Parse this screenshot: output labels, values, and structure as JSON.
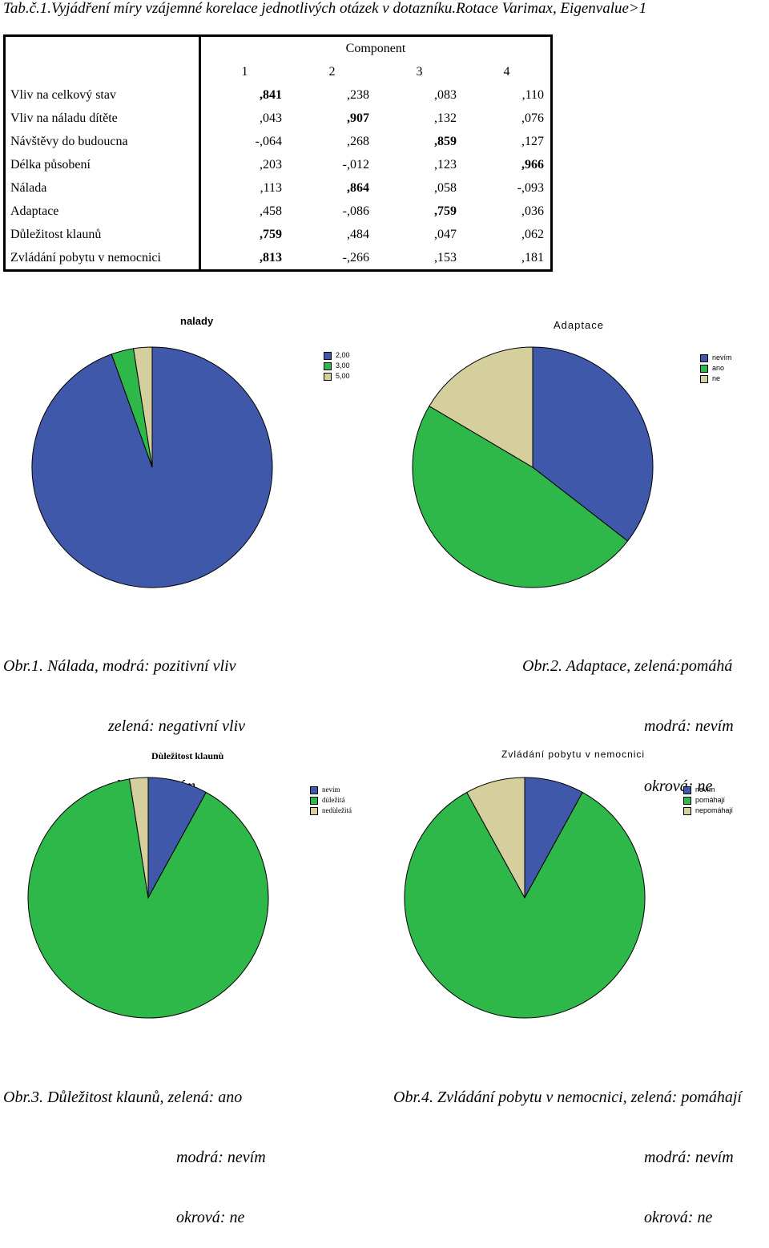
{
  "title": "Tab.č.1.Vyjádření míry vzájemné korelace jednotlivých otázek v dotazníku.Rotace Varimax, Eigenvalue>1",
  "table": {
    "header": "Component",
    "columns": [
      "1",
      "2",
      "3",
      "4"
    ],
    "rows": [
      {
        "label": "Vliv na celkový stav",
        "values": [
          ",841",
          ",238",
          ",083",
          ",110"
        ],
        "bold": [
          0
        ]
      },
      {
        "label": "Vliv na náladu dítěte",
        "values": [
          ",043",
          ",907",
          ",132",
          ",076"
        ],
        "bold": [
          1
        ]
      },
      {
        "label": "Návštěvy do budoucna",
        "values": [
          "-,064",
          ",268",
          ",859",
          ",127"
        ],
        "bold": [
          2
        ]
      },
      {
        "label": "Délka působení",
        "values": [
          ",203",
          "-,012",
          ",123",
          ",966"
        ],
        "bold": [
          3
        ]
      },
      {
        "label": "Nálada",
        "values": [
          ",113",
          ",864",
          ",058",
          "-,093"
        ],
        "bold": [
          1
        ]
      },
      {
        "label": "Adaptace",
        "values": [
          ",458",
          "-,086",
          ",759",
          ",036"
        ],
        "bold": [
          2
        ]
      },
      {
        "label": "Důležitost klaunů",
        "values": [
          ",759",
          ",484",
          ",047",
          ",062"
        ],
        "bold": [
          0
        ]
      },
      {
        "label": "Zvládání pobytu v nemocnici",
        "values": [
          ",813",
          "-,266",
          ",153",
          ",181"
        ],
        "bold": [
          0
        ]
      }
    ]
  },
  "colors": {
    "blue": "#3f58a9",
    "green": "#2fb84a",
    "tan": "#d4cf9c"
  },
  "chart_data": [
    {
      "type": "pie",
      "title": "nalady",
      "legend": [
        "2,00",
        "3,00",
        "5,00"
      ],
      "values": [
        94.5,
        3.0,
        2.5
      ],
      "caption": [
        "Obr.1. Nálada, modrá: pozitivní vliv",
        "zelená: negativní vliv",
        "okrová:nevím"
      ]
    },
    {
      "type": "pie",
      "title": "Adaptace",
      "legend": [
        "nevím",
        "ano",
        "ne"
      ],
      "values": [
        35.5,
        48.0,
        16.5
      ],
      "caption": [
        "Obr.2. Adaptace, zelená:pomáhá",
        "modrá: nevím",
        "okrová: ne"
      ]
    },
    {
      "type": "pie",
      "title": "Dùležitost klaunù",
      "legend": [
        "nevím",
        "dùležitá",
        "nedùležitá"
      ],
      "values": [
        8.0,
        89.5,
        2.5
      ],
      "caption": [
        "Obr.3. Důležitost klaunů, zelená: ano",
        "modrá: nevím",
        "okrová: ne"
      ]
    },
    {
      "type": "pie",
      "title": "Zvládání pobytu v nemocnici",
      "legend": [
        "nevím",
        "pomáhají",
        "nepomáhají"
      ],
      "values": [
        8.0,
        84.0,
        8.0
      ],
      "caption": [
        "Obr.4. Zvládání pobytu v nemocnici, zelená: pomáhají",
        "modrá: nevím",
        "okrová: ne"
      ]
    }
  ]
}
